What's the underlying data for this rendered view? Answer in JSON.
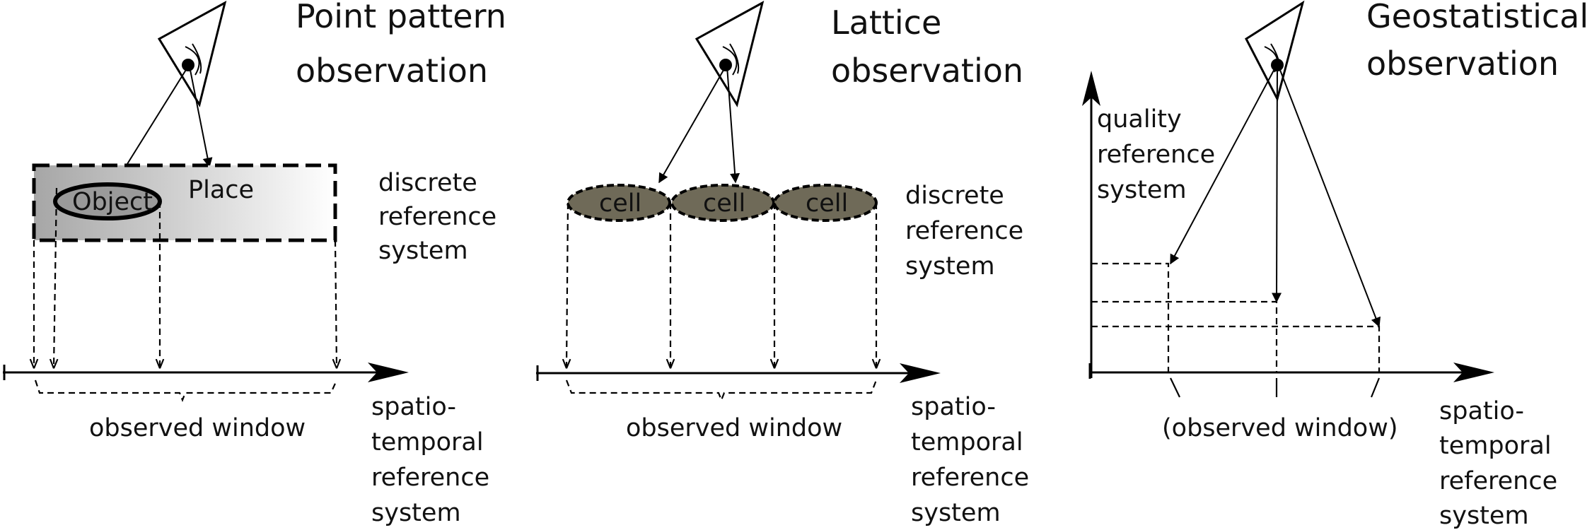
{
  "panels": {
    "point": {
      "title_line1": "Point pattern",
      "title_line2": "observation",
      "object_label": "Object",
      "place_label": "Place",
      "discrete_line1": "discrete",
      "discrete_line2": "reference",
      "discrete_line3": "system",
      "window_label": "observed window",
      "st_line1": "spatio-",
      "st_line2": "temporal",
      "st_line3": "reference",
      "st_line4": "system"
    },
    "lattice": {
      "title_line1": "Lattice",
      "title_line2": "observation",
      "cells": [
        "cell",
        "cell",
        "cell"
      ],
      "discrete_line1": "discrete",
      "discrete_line2": "reference",
      "discrete_line3": "system",
      "window_label": "observed window",
      "st_line1": "spatio-",
      "st_line2": "temporal",
      "st_line3": "reference",
      "st_line4": "system"
    },
    "geostat": {
      "title_line1": "Geostatistical",
      "title_line2": "observation",
      "quality_line1": "quality",
      "quality_line2": "reference",
      "quality_line3": "system",
      "window_label": "(observed window)",
      "st_line1": "spatio-",
      "st_line2": "temporal",
      "st_line3": "reference",
      "st_line4": "system"
    }
  },
  "colors": {
    "cell_fill": "#6f6a58",
    "place_gradient_start": "#a8a8a8",
    "place_gradient_end": "#ffffff"
  }
}
